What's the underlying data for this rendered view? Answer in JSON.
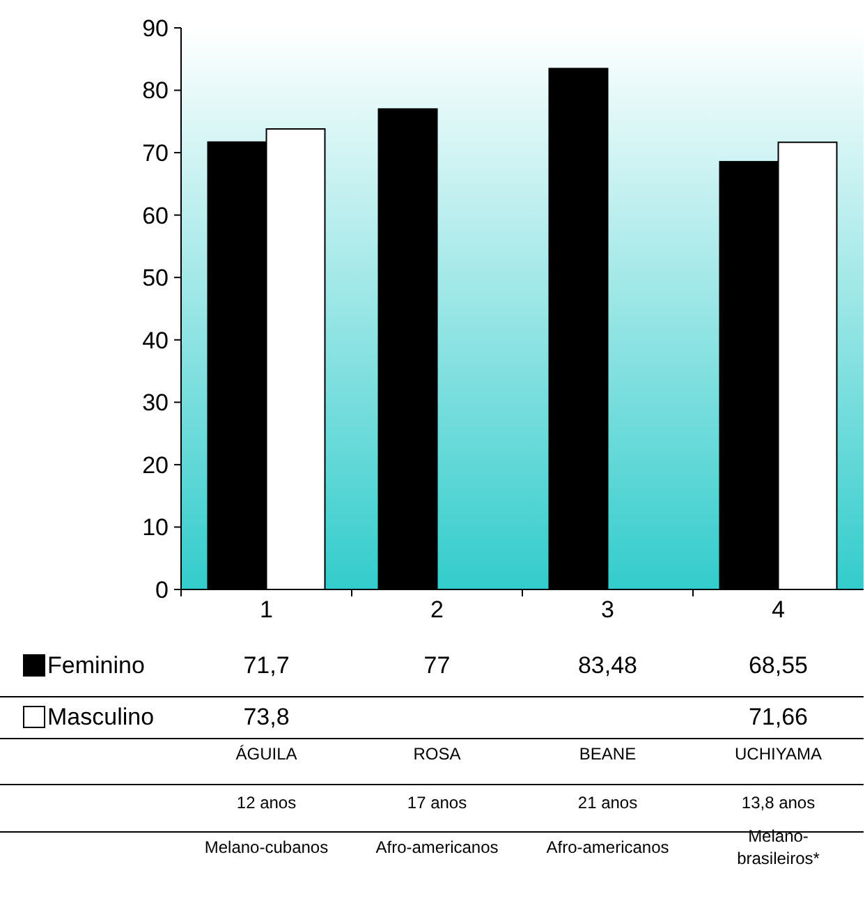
{
  "chart_data": {
    "type": "bar",
    "categories": [
      "1",
      "2",
      "3",
      "4"
    ],
    "series": [
      {
        "name": "Feminino",
        "color": "#000000",
        "values": [
          71.7,
          77,
          83.48,
          68.55
        ],
        "value_labels": [
          "71,7",
          "77",
          "83,48",
          "68,55"
        ]
      },
      {
        "name": "Masculino",
        "color": "#ffffff",
        "values": [
          73.8,
          null,
          null,
          71.66
        ],
        "value_labels": [
          "73,8",
          null,
          null,
          "71,66"
        ]
      }
    ],
    "ylim": [
      0,
      90
    ],
    "yticks": [
      0,
      10,
      20,
      30,
      40,
      50,
      60,
      70,
      80,
      90
    ],
    "legend": "bottom",
    "annotations": [
      "ÁGUILA",
      "ROSA",
      "BEANE",
      "UCHIYAMA",
      "12 anos",
      "17 anos",
      "21 anos",
      "13,8 anos",
      "Melano-cubanos",
      "Afro-americanos",
      "Afro-americanos",
      "Melano-brasileiros*"
    ]
  }
}
